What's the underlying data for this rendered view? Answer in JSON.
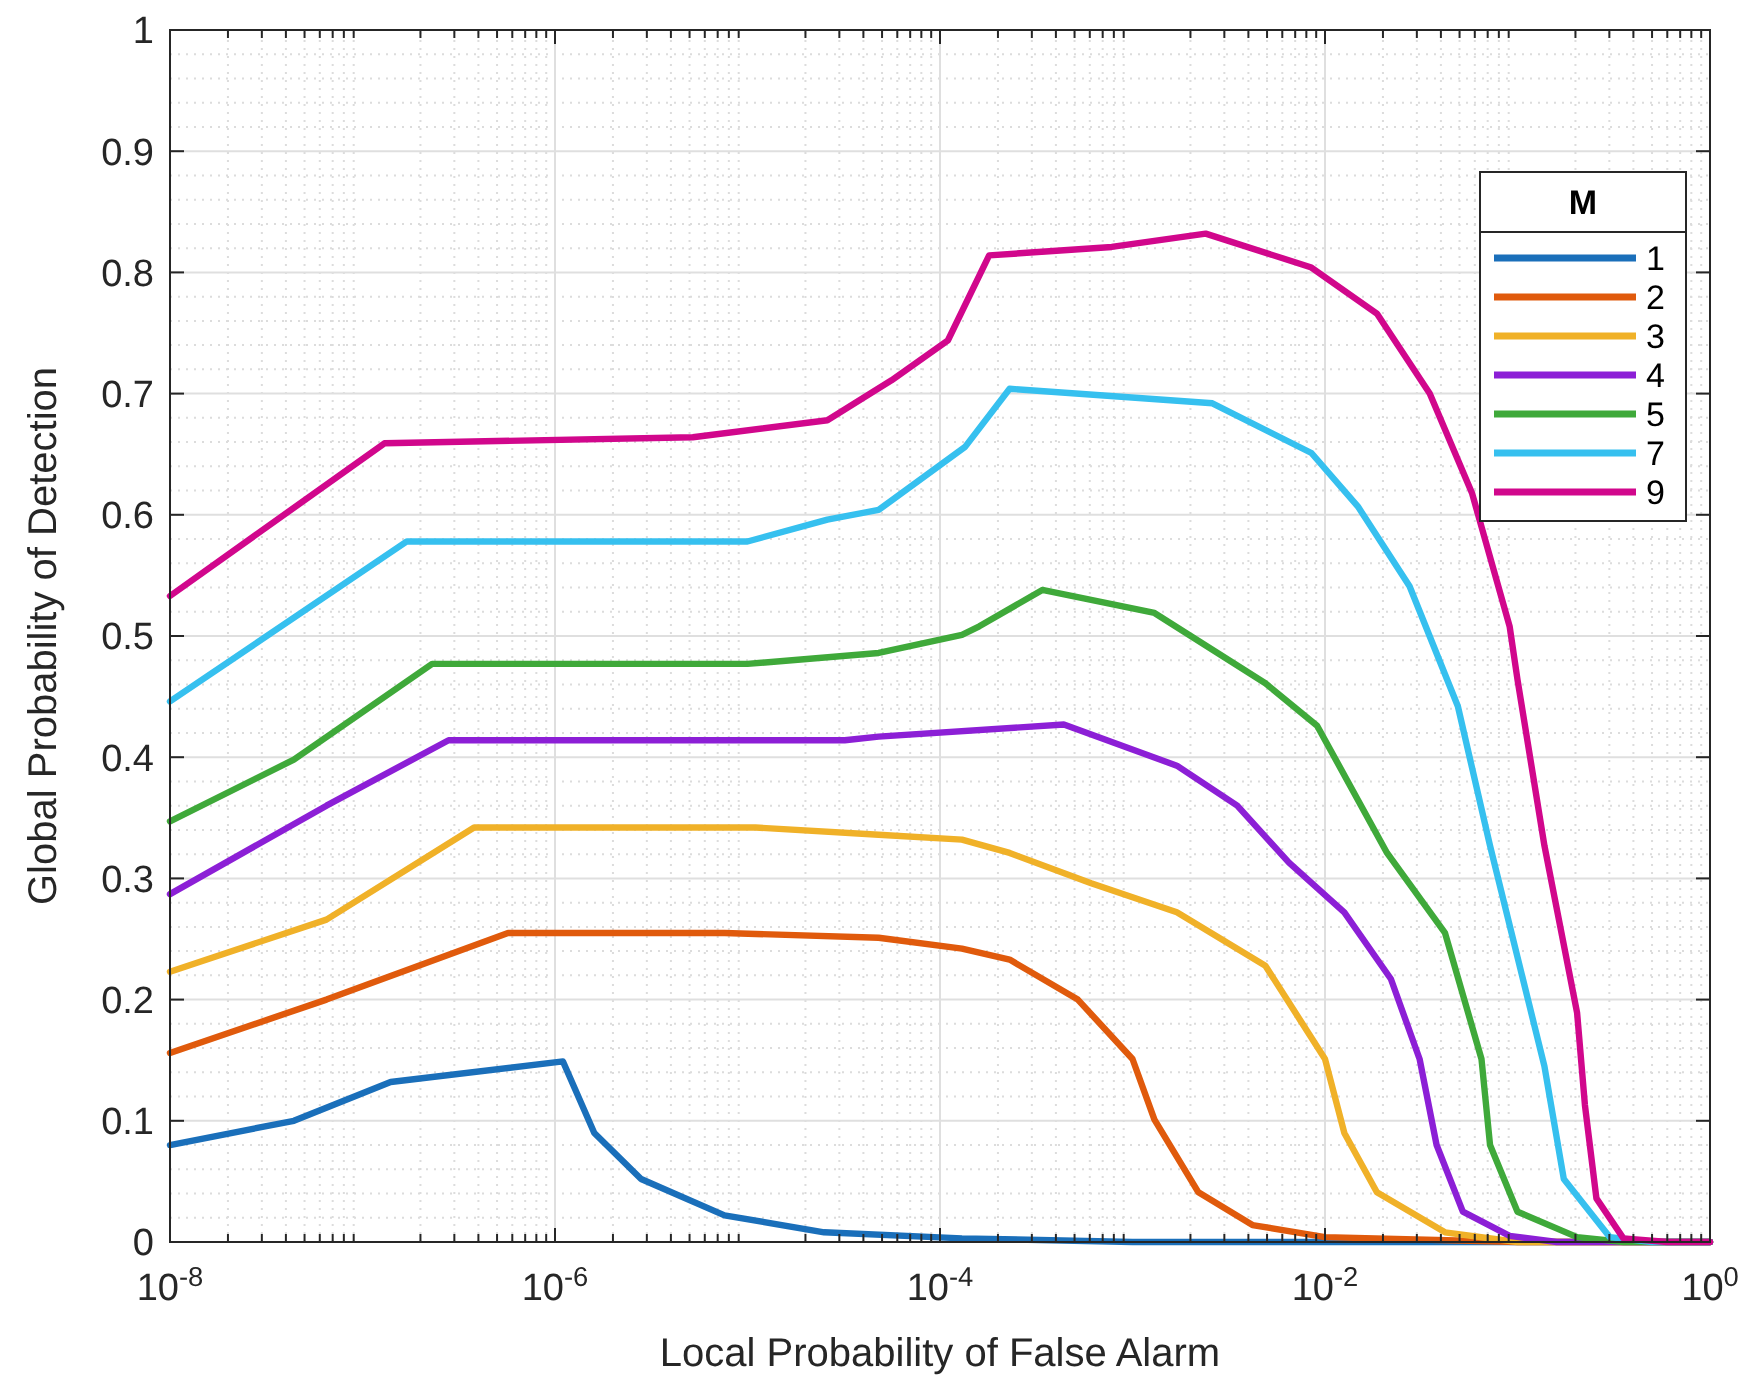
{
  "chart_data": {
    "type": "line",
    "xlabel": "Local Probability of False Alarm",
    "ylabel": "Global Probability of Detection",
    "legend_title": "M",
    "legend": "top right",
    "grid": true,
    "log": "x",
    "line_style": "solid",
    "marker": "none",
    "xlim": [
      1e-08,
      1
    ],
    "ylim": [
      0,
      1
    ],
    "xticks": [
      {
        "value": 1e-08,
        "label": "10$^{-8}$"
      },
      {
        "value": 1e-06,
        "label": "10$^{-6}$"
      },
      {
        "value": 0.0001,
        "label": "10$^{-4}$"
      },
      {
        "value": 0.01,
        "label": "10$^{-2}$"
      },
      {
        "value": 1,
        "label": "10$^{0}$"
      }
    ],
    "yticks": [
      0,
      0.1,
      0.2,
      0.3,
      0.4,
      0.5,
      0.6,
      0.7,
      0.8,
      0.9,
      1
    ],
    "series": [
      {
        "name": "1",
        "color": "#1a6fba",
        "x": [
          1e-08,
          4.4e-08,
          1.4e-07,
          1.1e-06,
          1.6e-06,
          2.8e-06,
          7.6e-06,
          2.5e-05,
          0.00013,
          0.001,
          1
        ],
        "values": [
          0.08,
          0.1,
          0.132,
          0.149,
          0.09,
          0.052,
          0.022,
          0.008,
          0.003,
          0,
          0
        ]
      },
      {
        "name": "2",
        "color": "#e05a0c",
        "x": [
          1e-08,
          6.5e-08,
          5.7e-07,
          7.6e-06,
          4.8e-05,
          0.00013,
          0.00023,
          0.00052,
          0.001,
          0.0013,
          0.0022,
          0.0042,
          0.01,
          0.1,
          1
        ],
        "values": [
          0.156,
          0.2,
          0.255,
          0.255,
          0.251,
          0.242,
          0.233,
          0.2,
          0.151,
          0.101,
          0.041,
          0.014,
          0.004,
          0,
          0
        ]
      },
      {
        "name": "3",
        "color": "#f0b128",
        "x": [
          1e-08,
          6.5e-08,
          3.8e-07,
          1.1e-05,
          4.8e-05,
          0.00013,
          0.00023,
          0.00061,
          0.0017,
          0.0049,
          0.01,
          0.0126,
          0.0186,
          0.042,
          0.1,
          1
        ],
        "values": [
          0.223,
          0.266,
          0.342,
          0.342,
          0.336,
          0.332,
          0.321,
          0.296,
          0.272,
          0.228,
          0.151,
          0.09,
          0.041,
          0.008,
          0,
          0
        ]
      },
      {
        "name": "4",
        "color": "#8c1fd6",
        "x": [
          1e-08,
          6.5e-08,
          2.8e-07,
          3.2e-05,
          4.8e-05,
          0.00044,
          0.0017,
          0.0035,
          0.0065,
          0.0126,
          0.022,
          0.031,
          0.038,
          0.052,
          0.091,
          0.16,
          1
        ],
        "values": [
          0.287,
          0.36,
          0.414,
          0.414,
          0.417,
          0.427,
          0.393,
          0.36,
          0.313,
          0.272,
          0.217,
          0.151,
          0.08,
          0.025,
          0.005,
          0,
          0
        ]
      },
      {
        "name": "5",
        "color": "#3fa93a",
        "x": [
          1e-08,
          4.4e-08,
          2.3e-07,
          1e-05,
          4.8e-05,
          0.00013,
          0.00016,
          0.00034,
          0.0013,
          0.0049,
          0.0091,
          0.021,
          0.042,
          0.065,
          0.072,
          0.1,
          0.204,
          0.355,
          1
        ],
        "values": [
          0.347,
          0.398,
          0.477,
          0.477,
          0.486,
          0.501,
          0.508,
          0.538,
          0.519,
          0.461,
          0.426,
          0.321,
          0.255,
          0.151,
          0.08,
          0.025,
          0.004,
          0,
          0
        ]
      },
      {
        "name": "7",
        "color": "#36c0ef",
        "x": [
          1e-08,
          1.7e-07,
          1e-05,
          2.6e-05,
          4.8e-05,
          0.000135,
          0.00023,
          0.0026,
          0.0085,
          0.0148,
          0.0275,
          0.049,
          0.072,
          0.138,
          0.174,
          0.302,
          0.5,
          1
        ],
        "values": [
          0.446,
          0.578,
          0.578,
          0.596,
          0.604,
          0.656,
          0.704,
          0.692,
          0.651,
          0.607,
          0.541,
          0.442,
          0.327,
          0.145,
          0.052,
          0.004,
          0,
          0
        ]
      },
      {
        "name": "9",
        "color": "#d1078c",
        "x": [
          1e-08,
          1.3e-07,
          5.2e-06,
          2.6e-05,
          5.6e-05,
          0.00011,
          0.00018,
          0.00078,
          0.0024,
          0.0085,
          0.0186,
          0.035,
          0.058,
          0.091,
          0.1,
          0.138,
          0.204,
          0.224,
          0.257,
          0.355,
          0.6,
          1
        ],
        "values": [
          0.533,
          0.659,
          0.664,
          0.678,
          0.711,
          0.744,
          0.814,
          0.821,
          0.832,
          0.804,
          0.766,
          0.7,
          0.618,
          0.508,
          0.464,
          0.327,
          0.189,
          0.113,
          0.036,
          0.003,
          0,
          0
        ]
      }
    ]
  }
}
